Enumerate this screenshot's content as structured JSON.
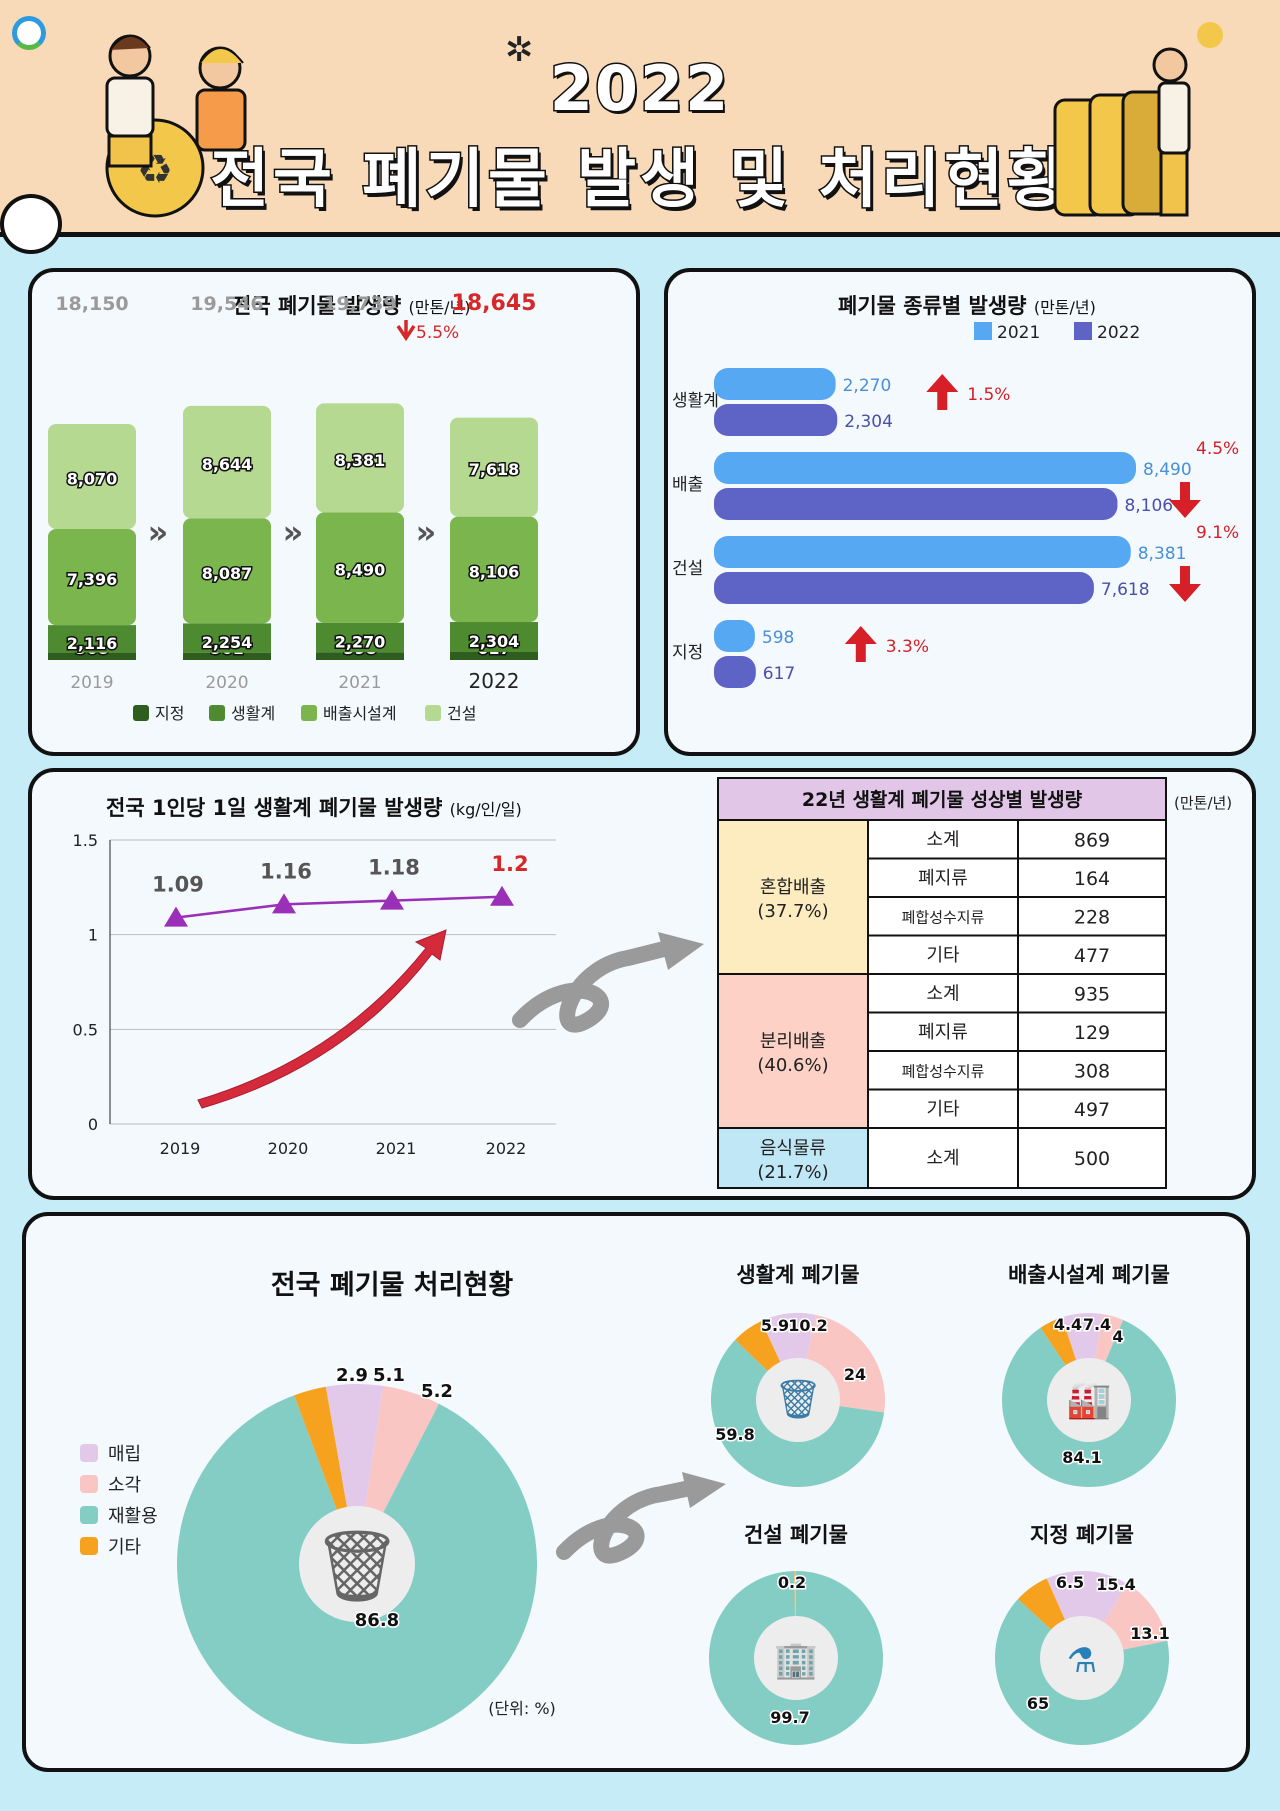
{
  "header": {
    "year": "2022",
    "title": "전국 폐기물 발생 및 처리현황"
  },
  "panel1": {
    "title": "전국 폐기물 발생량",
    "unit": "(만톤/년)",
    "change": "5.5%",
    "chart_data": {
      "type": "bar",
      "categories": [
        "2019",
        "2020",
        "2021",
        "2022"
      ],
      "totals": [
        "18,150",
        "19,546",
        "19,739",
        "18,645"
      ],
      "series": [
        {
          "name": "지정",
          "values": [
            568,
            561,
            598,
            617
          ],
          "labels": [
            "568",
            "561",
            "598",
            "617"
          ],
          "color": "#2e5d1e"
        },
        {
          "name": "생활계",
          "values": [
            2116,
            2254,
            2270,
            2304
          ],
          "labels": [
            "2,116",
            "2,254",
            "2,270",
            "2,304"
          ],
          "color": "#4e8a2f"
        },
        {
          "name": "배출시설계",
          "values": [
            7396,
            8087,
            8490,
            8106
          ],
          "labels": [
            "7,396",
            "8,087",
            "8,490",
            "8,106"
          ],
          "color": "#7ab54d"
        },
        {
          "name": "건설",
          "values": [
            8070,
            8644,
            8381,
            7618
          ],
          "labels": [
            "8,070",
            "8,644",
            "8,381",
            "7,618"
          ],
          "color": "#b5d990"
        }
      ]
    }
  },
  "panel2": {
    "title": "폐기물 종류별 발생량",
    "unit": "(만톤/년)",
    "chart_data": {
      "type": "bar",
      "orientation": "horizontal",
      "categories": [
        "생활계",
        "배출",
        "건설",
        "지정"
      ],
      "series": [
        {
          "name": "2021",
          "values": [
            2270,
            8490,
            8381,
            598
          ],
          "labels": [
            "2,270",
            "8,490",
            "8,381",
            "598"
          ],
          "color": "#56a8f2"
        },
        {
          "name": "2022",
          "values": [
            2304,
            8106,
            7618,
            617
          ],
          "labels": [
            "2,304",
            "8,106",
            "7,618",
            "617"
          ],
          "color": "#5e63c6"
        }
      ],
      "changes": [
        {
          "text": "1.5%",
          "direction": "up"
        },
        {
          "text": "4.5%",
          "direction": "down"
        },
        {
          "text": "9.1%",
          "direction": "down"
        },
        {
          "text": "3.3%",
          "direction": "up"
        }
      ]
    }
  },
  "panel3": {
    "title": "전국 1인당 1일 생활계 폐기물 발생량",
    "unit": "(kg/인/일)",
    "chart_data": {
      "type": "line",
      "x": [
        "2019",
        "2020",
        "2021",
        "2022"
      ],
      "y": [
        1.09,
        1.16,
        1.18,
        1.2
      ],
      "labels": [
        "1.09",
        "1.16",
        "1.18",
        "1.2"
      ],
      "ylim": [
        0,
        1.5
      ],
      "yticks": [
        "0",
        "0.5",
        "1",
        "1.5"
      ],
      "grid": true,
      "color": "#9b30b8"
    }
  },
  "table": {
    "title": "22년 생활계 폐기물 성상별 발생량",
    "unit": "(만톤/년)",
    "groups": [
      {
        "name": "혼합배출",
        "pct": "(37.7%)",
        "color": "#fdecc0",
        "rows": [
          [
            "소계",
            "869"
          ],
          [
            "폐지류",
            "164"
          ],
          [
            "폐합성수지류",
            "228"
          ],
          [
            "기타",
            "477"
          ]
        ]
      },
      {
        "name": "분리배출",
        "pct": "(40.6%)",
        "color": "#fdd1c6",
        "rows": [
          [
            "소계",
            "935"
          ],
          [
            "폐지류",
            "129"
          ],
          [
            "폐합성수지류",
            "308"
          ],
          [
            "기타",
            "497"
          ]
        ]
      },
      {
        "name": "음식물류",
        "pct": "(21.7%)",
        "color": "#bfe7f6",
        "rows": [
          [
            "소계",
            "500"
          ]
        ]
      }
    ]
  },
  "panel4": {
    "title": "전국 폐기물 처리현황",
    "unit_note": "(단위: %)",
    "legend": [
      {
        "name": "매립",
        "color": "#e2c9ea"
      },
      {
        "name": "소각",
        "color": "#fac6c3"
      },
      {
        "name": "재활용",
        "color": "#84cdc4"
      },
      {
        "name": "기타",
        "color": "#f6a21f"
      }
    ],
    "chart_data": [
      {
        "type": "pie",
        "name": "전국",
        "values": [
          5.1,
          5.2,
          86.8,
          2.9
        ],
        "labels": [
          "5.1",
          "5.2",
          "86.8",
          "2.9"
        ]
      },
      {
        "type": "pie",
        "name": "생활계 폐기물",
        "values": [
          10.2,
          24,
          59.8,
          5.9
        ],
        "labels": [
          "10.2",
          "24",
          "59.8",
          "5.9"
        ]
      },
      {
        "type": "pie",
        "name": "배출시설계 폐기물",
        "values": [
          7.4,
          4,
          84.1,
          4.4
        ],
        "labels": [
          "7.4",
          "4",
          "84.1",
          "4.4"
        ]
      },
      {
        "type": "pie",
        "name": "건설 폐기물",
        "values": [
          0.2,
          0,
          99.7,
          0.1
        ],
        "labels": [
          "0.2",
          "",
          "99.7",
          ""
        ]
      },
      {
        "type": "pie",
        "name": "지정 폐기물",
        "values": [
          15.4,
          13.1,
          65,
          6.5
        ],
        "labels": [
          "15.4",
          "13.1",
          "65",
          "6.5"
        ]
      }
    ]
  }
}
